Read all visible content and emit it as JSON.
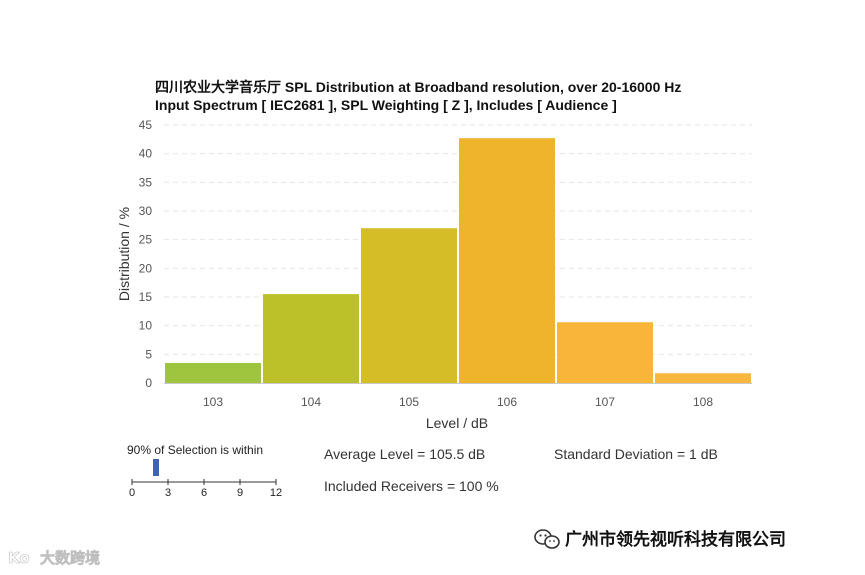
{
  "chart_data": {
    "type": "bar",
    "title_line1": "四川农业大学音乐厅 SPL Distribution at Broadband resolution, over 20-16000 Hz",
    "title_line2": "Input Spectrum [ IEC2681 ], SPL Weighting [ Z ], Includes [ Audience ]",
    "xlabel": "Level / dB",
    "ylabel": "Distribution / %",
    "categories": [
      "103",
      "104",
      "105",
      "106",
      "107",
      "108"
    ],
    "values": [
      3.5,
      15.5,
      27,
      42.7,
      10.6,
      1.7
    ],
    "bar_colors": [
      "#9fc43d",
      "#bcc12a",
      "#d4bd27",
      "#eeb42c",
      "#f8b53a",
      "#f7b83d"
    ],
    "ylim": [
      0,
      45
    ],
    "yticks": [
      "0",
      "5",
      "10",
      "15",
      "20",
      "25",
      "30",
      "35",
      "40",
      "45"
    ],
    "grid": true
  },
  "stats": {
    "average_level": "Average Level = 105.5 dB",
    "std_dev": "Standard Deviation = 1 dB",
    "included_receivers": "Included Receivers = 100 %"
  },
  "selection_slider": {
    "label": "90% of Selection is within",
    "ticks": [
      "0",
      "3",
      "6",
      "9",
      "12"
    ],
    "value": 2,
    "max": 12
  },
  "footer": {
    "brand": "广州市领先视听科技有限公司",
    "watermark": "大数跨境",
    "watermark_logo": "Ko"
  },
  "colors": {
    "gridline": "#e6e6e6",
    "axis": "#c8c8c8",
    "slider_handle": "#3f64b4"
  }
}
